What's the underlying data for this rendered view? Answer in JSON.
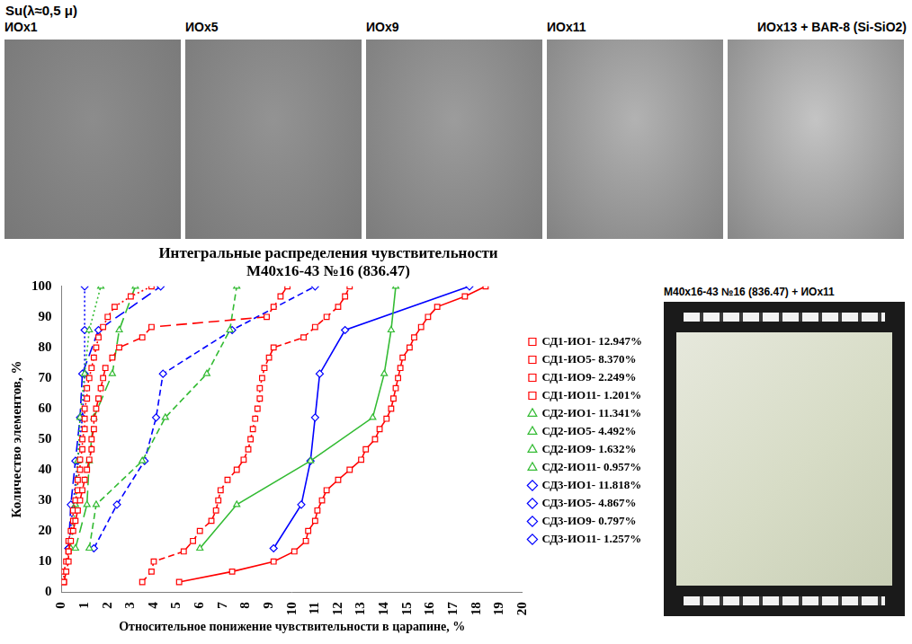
{
  "header": {
    "title": "Su(λ≈0,5 μ)",
    "panels": [
      "ИОх1",
      "ИОх5",
      "ИОх9",
      "ИОх11",
      "ИОх13 + BAR-8 (Si-SiO2)"
    ]
  },
  "photo": {
    "caption": "М40х16-43 №16 (836.47) + ИОх11"
  },
  "chart_data": {
    "type": "scatter",
    "title": [
      "Интегральные распределения чувствительности",
      "М40х16-43 №16 (836.47)"
    ],
    "x_label": "Относительное понижение чувствительности в царапине, %",
    "y_label": "Количество элементов, %",
    "xlim": [
      0,
      20
    ],
    "xticks": [
      0,
      1,
      2,
      3,
      4,
      5,
      6,
      7,
      8,
      9,
      10,
      11,
      12,
      13,
      14,
      15,
      16,
      17,
      18,
      19,
      20
    ],
    "ylim": [
      0,
      100
    ],
    "yticks": [
      0,
      10,
      20,
      30,
      40,
      50,
      60,
      70,
      80,
      90,
      100
    ],
    "grid": false,
    "legend": "right",
    "series": [
      {
        "name": "СД1-ИО1- 12.947%",
        "color": "#ff0000",
        "marker": "square",
        "line_style": "solid",
        "x": [
          5.1,
          7.4,
          9.2,
          10.1,
          10.6,
          10.7,
          11.0,
          11.1,
          11.3,
          11.5,
          12.0,
          12.5,
          13.0,
          13.2,
          13.6,
          13.8,
          14.1,
          14.3,
          14.4,
          14.5,
          14.6,
          14.7,
          14.8,
          15.1,
          15.3,
          15.6,
          15.9,
          16.3,
          17.5,
          18.4
        ],
        "values": [
          3.3,
          6.7,
          10,
          13.3,
          16.7,
          20,
          23.3,
          26.7,
          30,
          33.3,
          36.7,
          40,
          43.3,
          46.7,
          50,
          53.3,
          56.7,
          60,
          63.3,
          66.7,
          70,
          73.3,
          76.7,
          80,
          83.3,
          86.7,
          90,
          93.3,
          96.7,
          100
        ]
      },
      {
        "name": "СД1-ИО5- 8.370%",
        "color": "#ff0000",
        "marker": "square",
        "line_style": "dashed",
        "x": [
          3.5,
          3.9,
          4.0,
          5.3,
          5.7,
          6.0,
          6.5,
          6.7,
          6.8,
          6.9,
          7.2,
          7.6,
          7.9,
          8.1,
          8.2,
          8.3,
          8.4,
          8.5,
          8.6,
          8.6,
          8.7,
          8.8,
          9.0,
          9.2,
          10.5,
          11.0,
          11.5,
          12.0,
          12.3,
          12.5
        ],
        "values": [
          3.3,
          6.7,
          10,
          13.3,
          16.7,
          20,
          23.3,
          26.7,
          30,
          33.3,
          36.7,
          40,
          43.3,
          46.7,
          50,
          53.3,
          56.7,
          60,
          63.3,
          66.7,
          70,
          73.3,
          76.7,
          80,
          83.3,
          86.7,
          90,
          93.3,
          96.7,
          100
        ]
      },
      {
        "name": "СД1-ИО9- 2.249%",
        "color": "#ff0000",
        "marker": "square",
        "line_style": "long_dashed",
        "x": [
          0.1,
          0.2,
          0.3,
          0.3,
          0.4,
          0.5,
          0.6,
          0.7,
          0.8,
          0.9,
          1.0,
          1.1,
          1.2,
          1.3,
          1.3,
          1.4,
          1.4,
          1.5,
          1.6,
          1.7,
          1.8,
          1.9,
          2.2,
          2.5,
          3.5,
          3.9,
          8.9,
          9.2,
          9.5,
          9.8
        ],
        "values": [
          3.3,
          6.7,
          10,
          13.3,
          16.7,
          20,
          23.3,
          26.7,
          30,
          33.3,
          36.7,
          40,
          43.3,
          46.7,
          50,
          53.3,
          56.7,
          60,
          63.3,
          66.7,
          70,
          73.3,
          76.7,
          80,
          83.3,
          86.7,
          90,
          93.3,
          96.7,
          100
        ]
      },
      {
        "name": "СД1-ИО11- 1.201%",
        "color": "#ff0000",
        "marker": "square",
        "line_style": "dotted",
        "x": [
          0.1,
          0.1,
          0.2,
          0.3,
          0.3,
          0.4,
          0.5,
          0.5,
          0.6,
          0.7,
          0.7,
          0.8,
          0.8,
          0.9,
          0.9,
          1.0,
          1.0,
          1.0,
          1.1,
          1.1,
          1.2,
          1.3,
          1.4,
          1.5,
          1.6,
          1.8,
          2.0,
          2.3,
          3.0,
          3.9
        ],
        "values": [
          3.3,
          6.7,
          10,
          13.3,
          16.7,
          20,
          23.3,
          26.7,
          30,
          33.3,
          36.7,
          40,
          43.3,
          46.7,
          50,
          53.3,
          56.7,
          60,
          63.3,
          66.7,
          70,
          73.3,
          76.7,
          80,
          83.3,
          86.7,
          90,
          93.3,
          96.7,
          100
        ]
      },
      {
        "name": "СД2-ИО1- 11.341%",
        "color": "#33bb33",
        "marker": "triangle",
        "line_style": "solid",
        "x": [
          6.0,
          7.6,
          10.8,
          13.5,
          14.0,
          14.3,
          14.5
        ],
        "values": [
          14.3,
          28.6,
          42.9,
          57.1,
          71.4,
          85.7,
          100
        ]
      },
      {
        "name": "СД2-ИО5- 4.492%",
        "color": "#33bb33",
        "marker": "triangle",
        "line_style": "dashed",
        "x": [
          1.2,
          1.5,
          3.5,
          4.5,
          6.3,
          7.3,
          7.6
        ],
        "values": [
          14.3,
          28.6,
          42.9,
          57.1,
          71.4,
          85.7,
          100
        ]
      },
      {
        "name": "СД2-ИО9- 1.632%",
        "color": "#33bb33",
        "marker": "triangle",
        "line_style": "long_dashed",
        "x": [
          0.6,
          1.1,
          1.2,
          1.4,
          2.2,
          2.5,
          3.2
        ],
        "values": [
          14.3,
          28.6,
          42.9,
          57.1,
          71.4,
          85.7,
          100
        ]
      },
      {
        "name": "СД2-ИО11- 0.957%",
        "color": "#33bb33",
        "marker": "triangle",
        "line_style": "dotted",
        "x": [
          0.4,
          0.6,
          0.7,
          0.8,
          1.0,
          1.2,
          1.7
        ],
        "values": [
          14.3,
          28.6,
          42.9,
          57.1,
          71.4,
          85.7,
          100
        ]
      },
      {
        "name": "СД3-ИО1- 11.818%",
        "color": "#0000ff",
        "marker": "diamond",
        "line_style": "solid",
        "x": [
          9.2,
          10.4,
          10.8,
          11.0,
          11.2,
          12.3,
          17.7
        ],
        "values": [
          14.3,
          28.6,
          42.9,
          57.1,
          71.4,
          85.7,
          100
        ]
      },
      {
        "name": "СД3-ИО5- 4.867%",
        "color": "#0000ff",
        "marker": "diamond",
        "line_style": "dashed",
        "x": [
          1.4,
          2.4,
          3.6,
          4.1,
          4.4,
          7.4,
          11.0
        ],
        "values": [
          14.3,
          28.6,
          42.9,
          57.1,
          71.4,
          85.7,
          100
        ]
      },
      {
        "name": "СД3-ИО9- 0.797%",
        "color": "#0000ff",
        "marker": "diamond",
        "line_style": "long_dashed",
        "x": [
          0.3,
          0.4,
          0.6,
          0.8,
          0.9,
          1.6,
          4.3
        ],
        "values": [
          14.3,
          28.6,
          42.9,
          57.1,
          71.4,
          85.7,
          100
        ]
      },
      {
        "name": "СД3-ИО11- 1.257%",
        "color": "#0000ff",
        "marker": "diamond",
        "line_style": "dotted",
        "x": [
          0.3,
          0.5,
          0.7,
          0.9,
          1.0,
          1.0,
          1.0
        ],
        "values": [
          14.3,
          28.6,
          42.9,
          57.1,
          71.4,
          85.7,
          100
        ]
      }
    ]
  }
}
